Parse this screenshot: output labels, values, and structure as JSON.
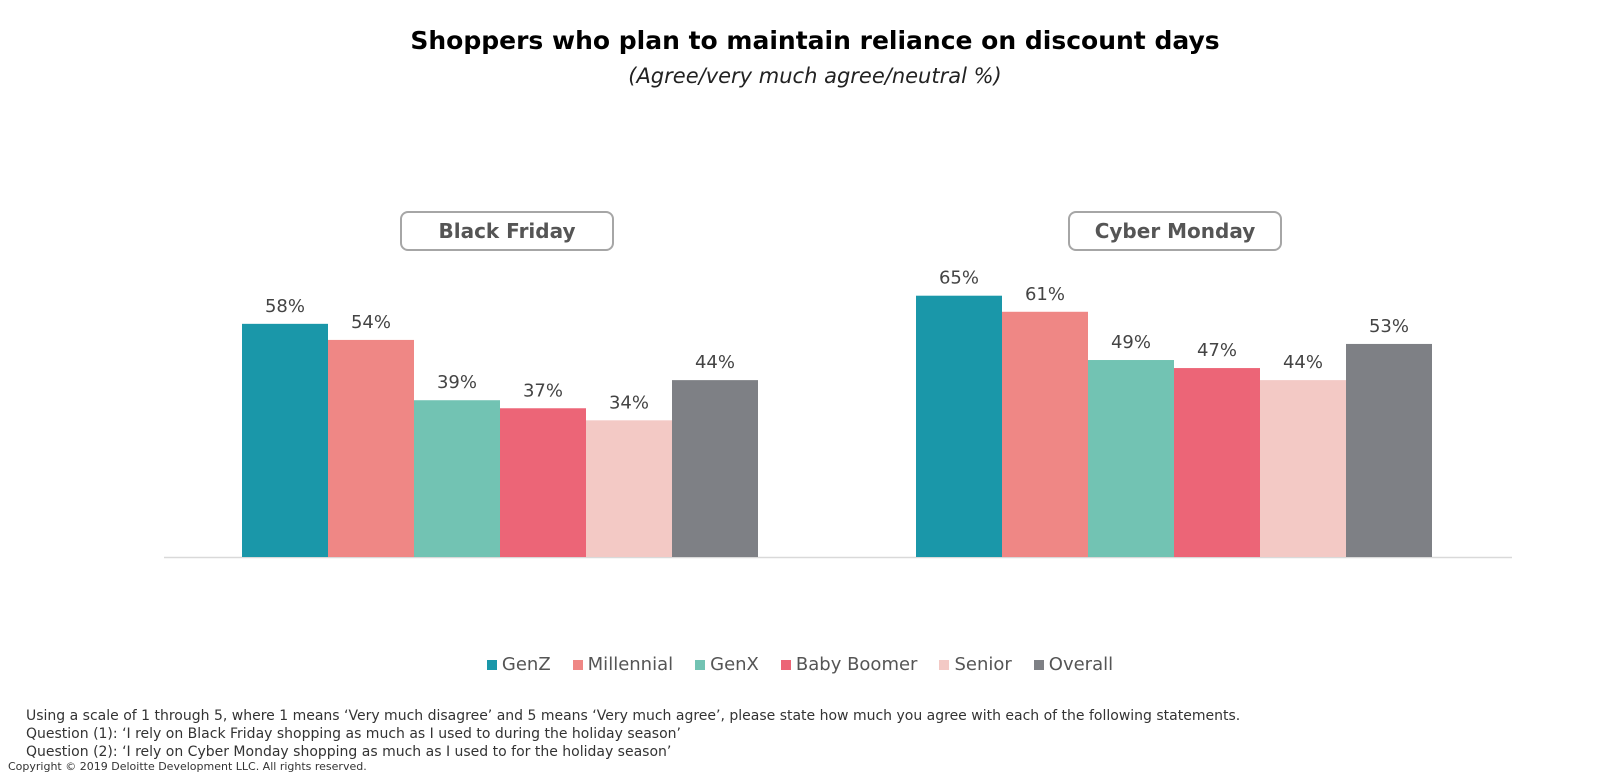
{
  "chart_data": {
    "type": "bar",
    "title": "Shoppers who plan to maintain reliance on discount days",
    "subtitle": "(Agree/very much agree/neutral %)",
    "categories": [
      "Black Friday",
      "Cyber Monday"
    ],
    "series": [
      {
        "name": "GenZ",
        "color": "#1a97a9",
        "values": [
          58,
          65
        ]
      },
      {
        "name": "Millennial",
        "color": "#ef8785",
        "values": [
          54,
          61
        ]
      },
      {
        "name": "GenX",
        "color": "#72c3b3",
        "values": [
          39,
          49
        ]
      },
      {
        "name": "Baby Boomer",
        "color": "#ec6577",
        "values": [
          37,
          47
        ]
      },
      {
        "name": "Senior",
        "color": "#f3c9c5",
        "values": [
          34,
          44
        ]
      },
      {
        "name": "Overall",
        "color": "#7e8085",
        "values": [
          44,
          53
        ]
      }
    ],
    "value_suffix": "%",
    "legend_position": "bottom",
    "grid": false
  },
  "notes": [
    "Using a scale of 1 through 5, where 1 means ‘Very much disagree’ and 5 means ‘Very much agree’, please state how much you agree with each of the following statements.",
    "Question (1): ‘I rely on Black Friday shopping as much as I used to during the holiday season’",
    "Question (2): ‘I rely on Cyber Monday shopping as much as I used to for the holiday season’"
  ],
  "copyright": "Copyright © 2019 Deloitte Development LLC. All rights reserved."
}
